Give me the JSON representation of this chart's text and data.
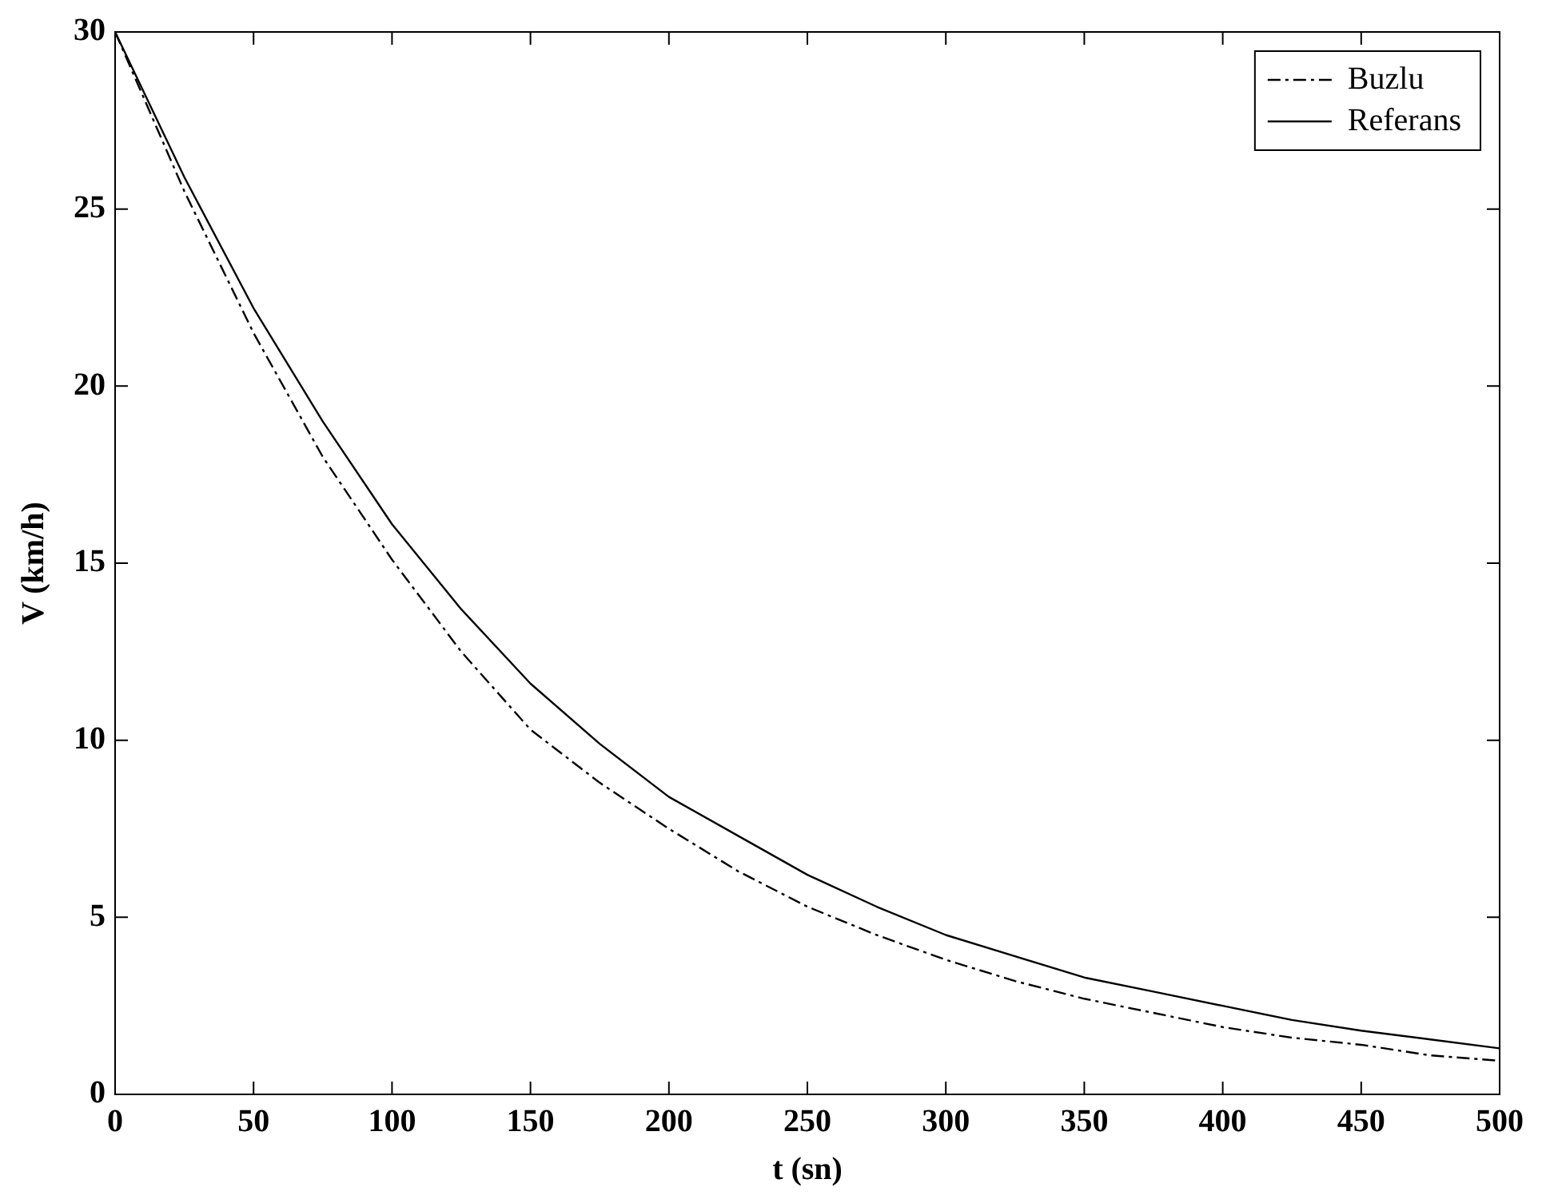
{
  "chart_data": {
    "type": "line",
    "xlabel": "t (sn)",
    "ylabel": "V (km/h)",
    "x": [
      0,
      25,
      50,
      75,
      100,
      125,
      150,
      175,
      200,
      225,
      250,
      275,
      300,
      325,
      350,
      375,
      400,
      425,
      450,
      475,
      500
    ],
    "series": [
      {
        "name": "Buzlu",
        "color": "#000000",
        "line_style": "dashed",
        "values": [
          30,
          25.5,
          21.5,
          18.0,
          15.1,
          12.5,
          10.3,
          8.8,
          7.5,
          6.3,
          5.3,
          4.5,
          3.8,
          3.2,
          2.7,
          2.3,
          1.9,
          1.6,
          1.4,
          1.1,
          0.95
        ]
      },
      {
        "name": "Referans",
        "color": "#000000",
        "line_style": "solid",
        "values": [
          30,
          25.9,
          22.2,
          19.0,
          16.1,
          13.7,
          11.6,
          9.9,
          8.4,
          7.3,
          6.2,
          5.3,
          4.5,
          3.9,
          3.3,
          2.9,
          2.5,
          2.1,
          1.8,
          1.55,
          1.3
        ]
      }
    ],
    "xlim": [
      0,
      500
    ],
    "xticks": [
      0,
      50,
      100,
      150,
      200,
      250,
      300,
      350,
      400,
      450,
      500
    ],
    "ylim": [
      0,
      30
    ],
    "yticks": [
      0,
      5,
      10,
      15,
      20,
      25,
      30
    ],
    "grid": false,
    "legend": "top right",
    "marker": "none"
  }
}
